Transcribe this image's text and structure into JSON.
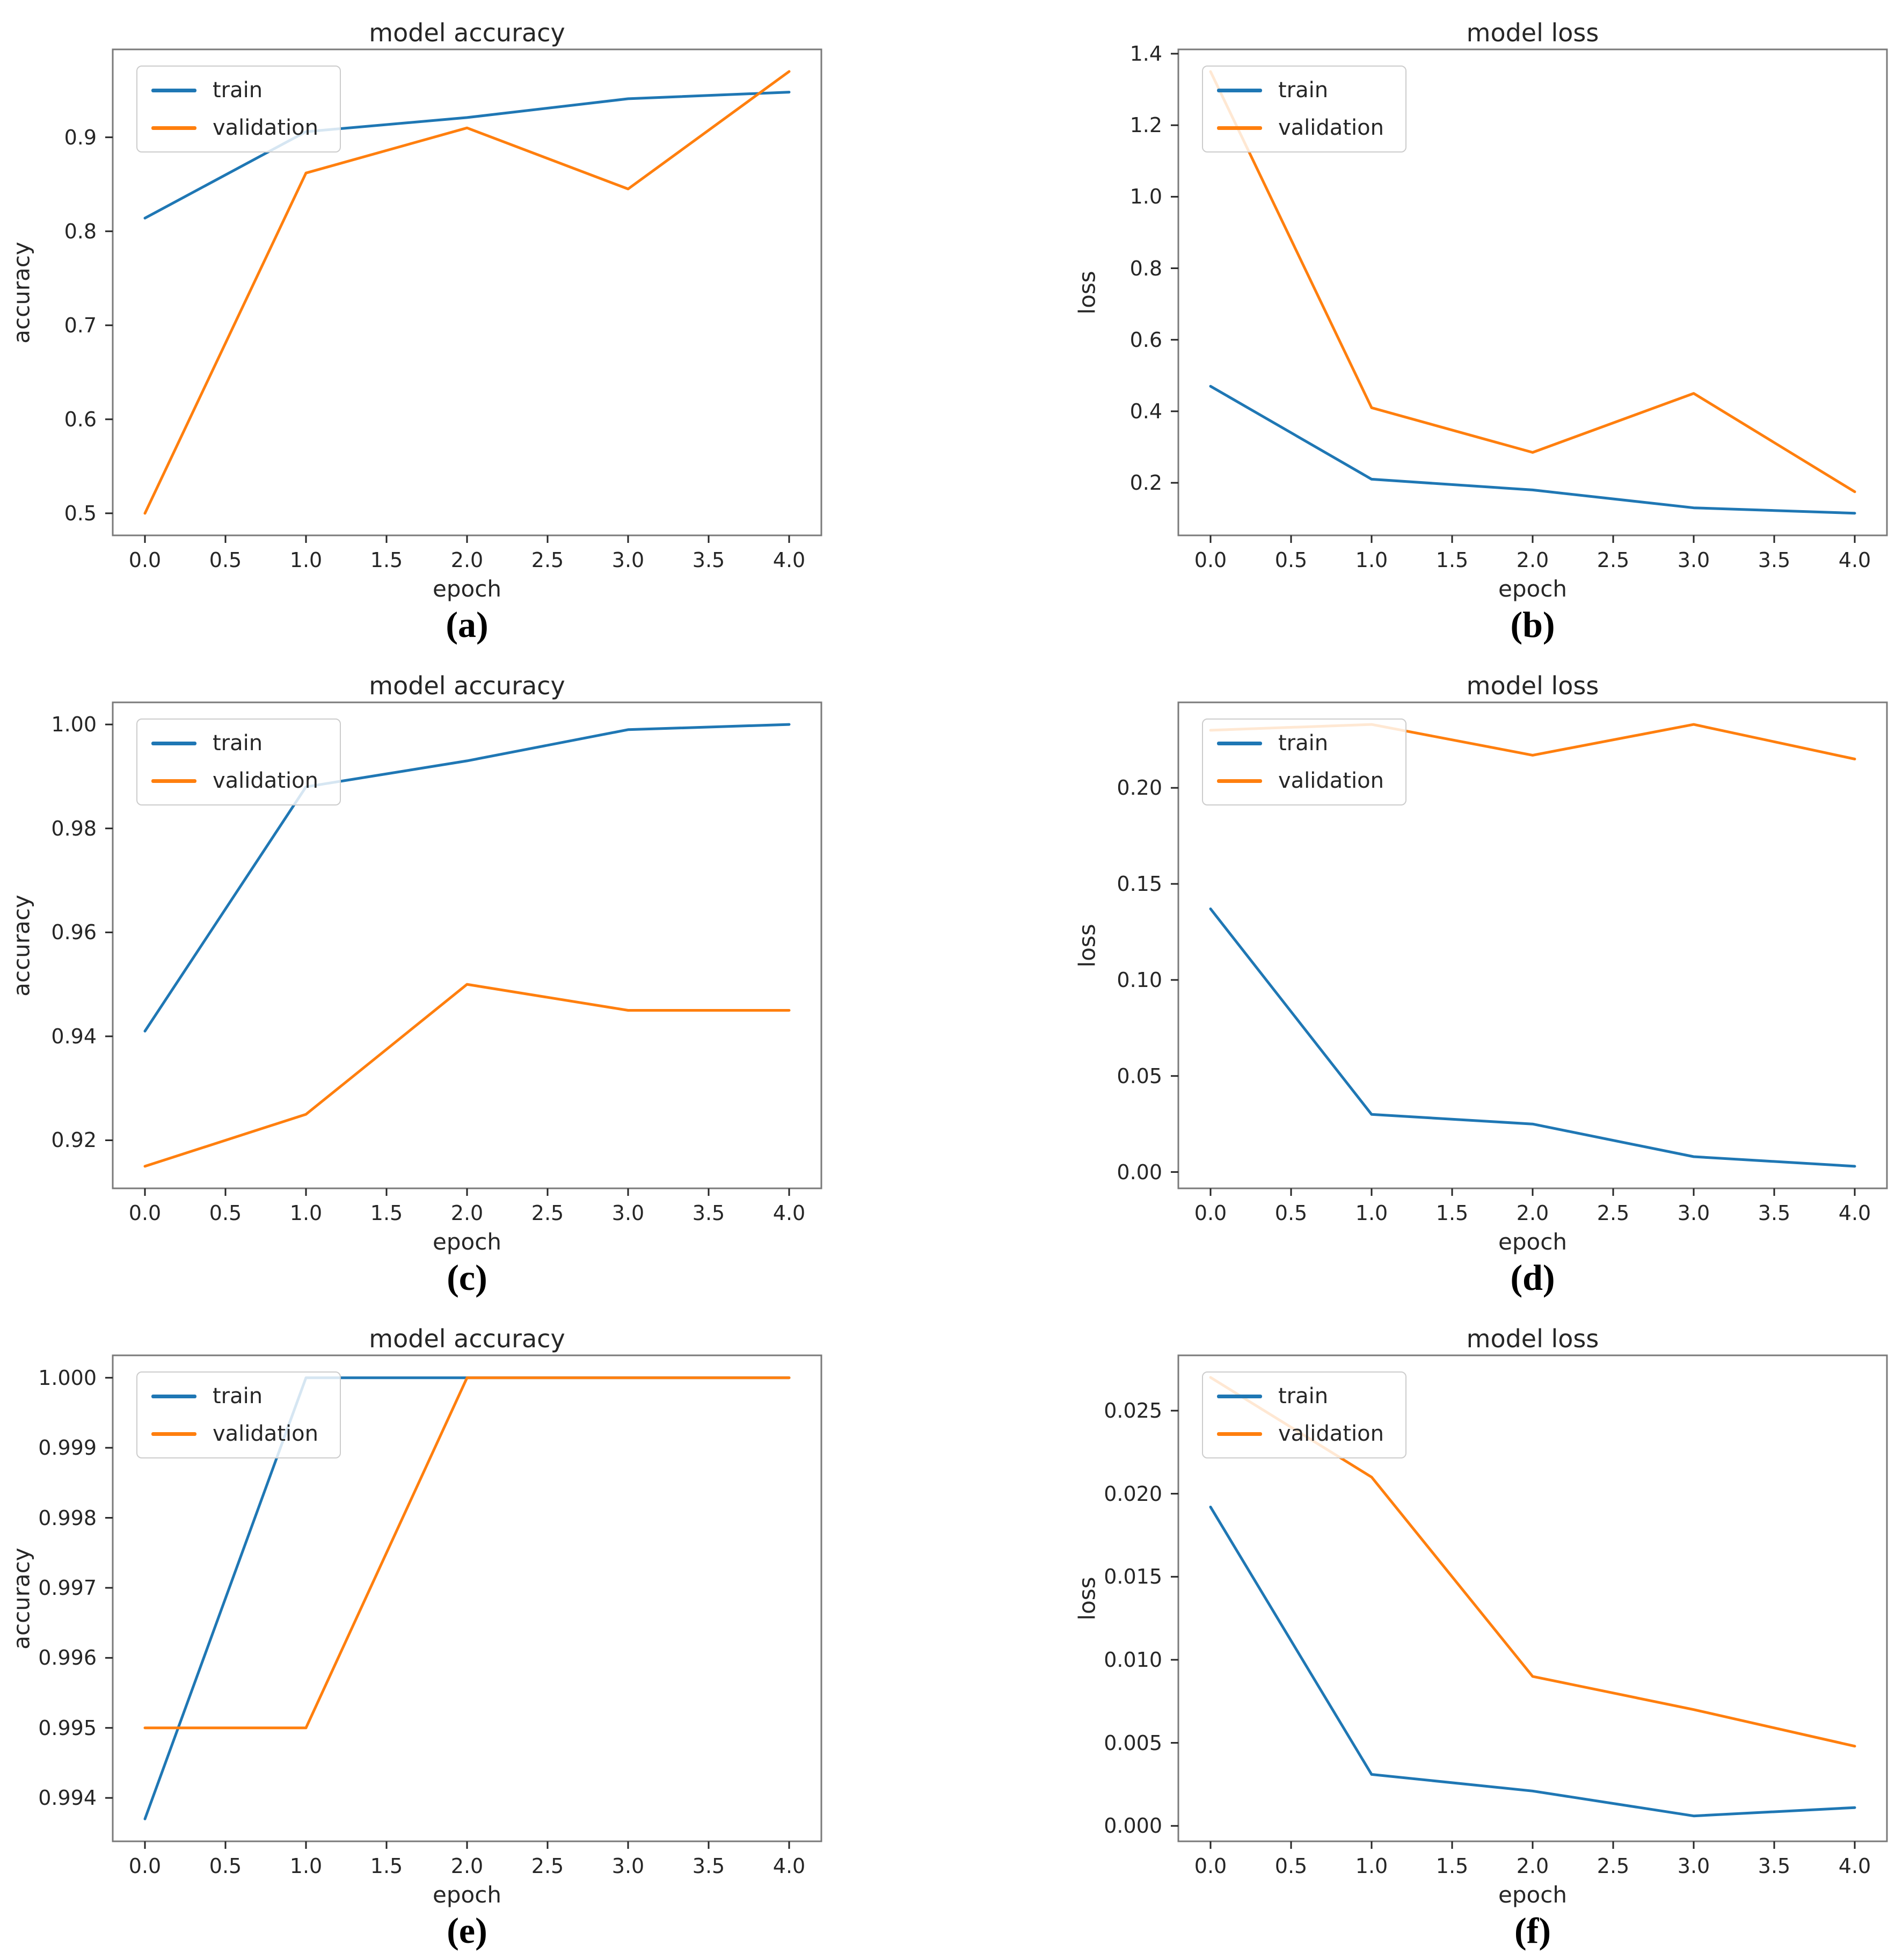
{
  "colors": {
    "train": "#1f77b4",
    "validation": "#ff7f0e",
    "frame": "#7a7a7a",
    "text": "#262626"
  },
  "legend": {
    "train": "train",
    "validation": "validation"
  },
  "xlim": [
    -0.2,
    4.2
  ],
  "xticks": {
    "values": [
      0,
      0.5,
      1,
      1.5,
      2,
      2.5,
      3,
      3.5,
      4
    ],
    "labels": [
      "0.0",
      "0.5",
      "1.0",
      "1.5",
      "2.0",
      "2.5",
      "3.0",
      "3.5",
      "4.0"
    ]
  },
  "chart_data": [
    {
      "panel_label": "(a)",
      "type": "line",
      "title": "model accuracy",
      "xlabel": "epoch",
      "ylabel": "accuracy",
      "legend_position": "upper left",
      "x": [
        0,
        1,
        2,
        3,
        4
      ],
      "series": [
        {
          "name": "train",
          "values": [
            0.814,
            0.906,
            0.921,
            0.941,
            0.948
          ]
        },
        {
          "name": "validation",
          "values": [
            0.5,
            0.862,
            0.91,
            0.845,
            0.97
          ]
        }
      ],
      "ylim": [
        0.4765,
        0.9935
      ],
      "ytick_values": [
        0.5,
        0.6,
        0.7,
        0.8,
        0.9
      ],
      "ytick_labels": [
        "0.5",
        "0.6",
        "0.7",
        "0.8",
        "0.9"
      ]
    },
    {
      "panel_label": "(b)",
      "type": "line",
      "title": "model loss",
      "xlabel": "epoch",
      "ylabel": "loss",
      "legend_position": "upper left",
      "x": [
        0,
        1,
        2,
        3,
        4
      ],
      "series": [
        {
          "name": "train",
          "values": [
            0.47,
            0.21,
            0.18,
            0.13,
            0.115
          ]
        },
        {
          "name": "validation",
          "values": [
            1.35,
            0.41,
            0.285,
            0.45,
            0.175
          ]
        }
      ],
      "ylim": [
        0.053,
        1.412
      ],
      "ytick_values": [
        0.2,
        0.4,
        0.6,
        0.8,
        1.0,
        1.2,
        1.4
      ],
      "ytick_labels": [
        "0.2",
        "0.4",
        "0.6",
        "0.8",
        "1.0",
        "1.2",
        "1.4"
      ]
    },
    {
      "panel_label": "(c)",
      "type": "line",
      "title": "model accuracy",
      "xlabel": "epoch",
      "ylabel": "accuracy",
      "legend_position": "upper left",
      "x": [
        0,
        1,
        2,
        3,
        4
      ],
      "series": [
        {
          "name": "train",
          "values": [
            0.941,
            0.988,
            0.993,
            0.999,
            1.0
          ]
        },
        {
          "name": "validation",
          "values": [
            0.915,
            0.925,
            0.95,
            0.945,
            0.945
          ]
        }
      ],
      "ylim": [
        0.91075,
        1.00425
      ],
      "ytick_values": [
        0.92,
        0.94,
        0.96,
        0.98,
        1.0
      ],
      "ytick_labels": [
        "0.92",
        "0.94",
        "0.96",
        "0.98",
        "1.00"
      ]
    },
    {
      "panel_label": "(d)",
      "type": "line",
      "title": "model loss",
      "xlabel": "epoch",
      "ylabel": "loss",
      "legend_position": "upper left",
      "x": [
        0,
        1,
        2,
        3,
        4
      ],
      "series": [
        {
          "name": "train",
          "values": [
            0.137,
            0.03,
            0.025,
            0.008,
            0.003
          ]
        },
        {
          "name": "validation",
          "values": [
            0.23,
            0.233,
            0.217,
            0.233,
            0.215
          ]
        }
      ],
      "ylim": [
        -0.0085,
        0.2445
      ],
      "ytick_values": [
        0.0,
        0.05,
        0.1,
        0.15,
        0.2
      ],
      "ytick_labels": [
        "0.00",
        "0.05",
        "0.10",
        "0.15",
        "0.20"
      ]
    },
    {
      "panel_label": "(e)",
      "type": "line",
      "title": "model accuracy",
      "xlabel": "epoch",
      "ylabel": "accuracy",
      "legend_position": "upper left",
      "x": [
        0,
        1,
        2,
        3,
        4
      ],
      "series": [
        {
          "name": "train",
          "values": [
            0.9937,
            1.0,
            1.0,
            1.0,
            1.0
          ]
        },
        {
          "name": "validation",
          "values": [
            0.995,
            0.995,
            1.0,
            1.0,
            1.0
          ]
        }
      ],
      "ylim": [
        0.99338,
        1.00032
      ],
      "ytick_values": [
        0.994,
        0.995,
        0.996,
        0.997,
        0.998,
        0.999,
        1.0
      ],
      "ytick_labels": [
        "0.994",
        "0.995",
        "0.996",
        "0.997",
        "0.998",
        "0.999",
        "1.000"
      ]
    },
    {
      "panel_label": "(f)",
      "type": "line",
      "title": "model loss",
      "xlabel": "epoch",
      "ylabel": "loss",
      "legend_position": "upper left",
      "x": [
        0,
        1,
        2,
        3,
        4
      ],
      "series": [
        {
          "name": "train",
          "values": [
            0.0192,
            0.0031,
            0.0021,
            0.0006,
            0.0011
          ]
        },
        {
          "name": "validation",
          "values": [
            0.027,
            0.021,
            0.009,
            0.007,
            0.0048
          ]
        }
      ],
      "ylim": [
        -0.00093,
        0.02833
      ],
      "ytick_values": [
        0.0,
        0.005,
        0.01,
        0.015,
        0.02,
        0.025
      ],
      "ytick_labels": [
        "0.000",
        "0.005",
        "0.010",
        "0.015",
        "0.020",
        "0.025"
      ]
    }
  ]
}
